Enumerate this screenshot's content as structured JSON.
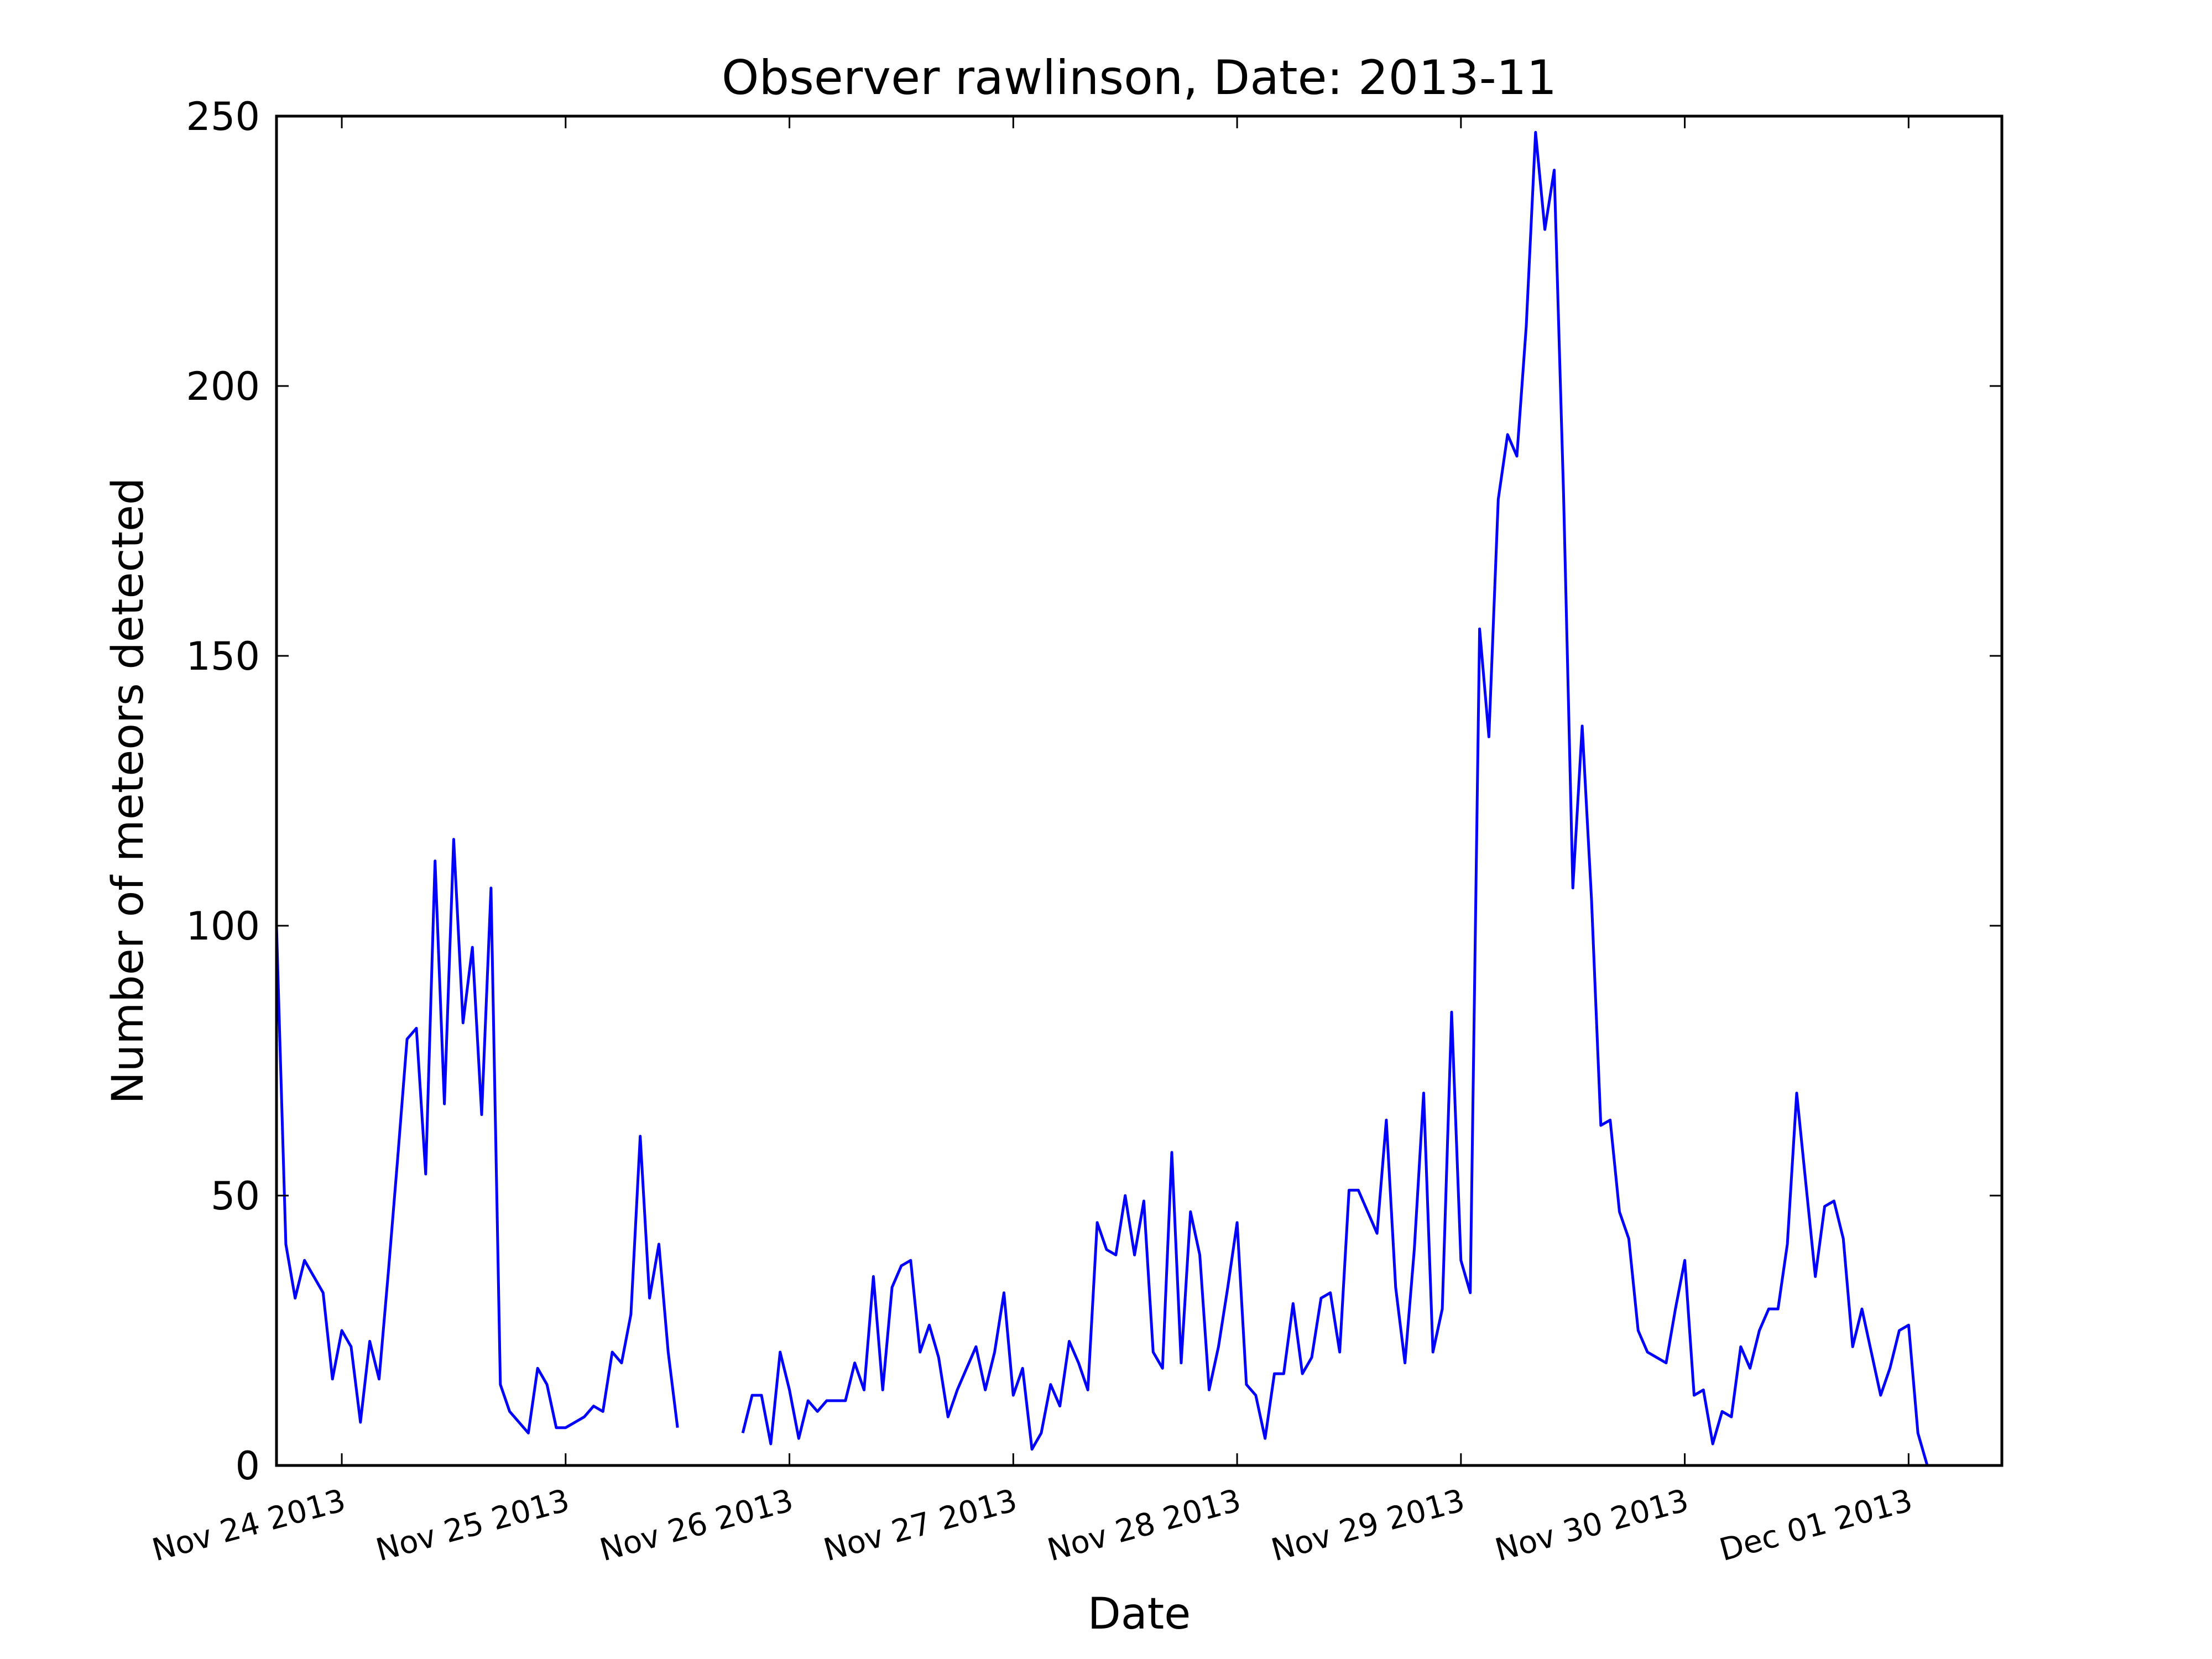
{
  "chart_data": {
    "type": "line",
    "title": "Observer rawlinson, Date: 2013-11",
    "xlabel": "Date",
    "ylabel": "Number of meteors detected",
    "xlim": [
      "2013-11-23 17:00",
      "2013-12-01 10:00"
    ],
    "ylim": [
      0,
      250
    ],
    "grid": false,
    "x_ticks": [
      {
        "date": "2013-11-24 00:00",
        "label": "Nov 24 2013"
      },
      {
        "date": "2013-11-25 00:00",
        "label": "Nov 25 2013"
      },
      {
        "date": "2013-11-26 00:00",
        "label": "Nov 26 2013"
      },
      {
        "date": "2013-11-27 00:00",
        "label": "Nov 27 2013"
      },
      {
        "date": "2013-11-28 00:00",
        "label": "Nov 28 2013"
      },
      {
        "date": "2013-11-29 00:00",
        "label": "Nov 29 2013"
      },
      {
        "date": "2013-11-30 00:00",
        "label": "Nov 30 2013"
      },
      {
        "date": "2013-12-01 00:00",
        "label": "Dec 01 2013"
      }
    ],
    "y_ticks": [
      0,
      50,
      100,
      150,
      200,
      250
    ],
    "series": [
      {
        "color": "#0000ff",
        "segments": [
          {
            "x": [
              "2013-11-23 17:00",
              "2013-11-23 18:00",
              "2013-11-23 19:00",
              "2013-11-23 20:00",
              "2013-11-23 21:00",
              "2013-11-23 22:00",
              "2013-11-23 23:00",
              "2013-11-24 00:00",
              "2013-11-24 01:00",
              "2013-11-24 02:00",
              "2013-11-24 03:00",
              "2013-11-24 04:00",
              "2013-11-24 05:00",
              "2013-11-24 06:00",
              "2013-11-24 07:00",
              "2013-11-24 08:00",
              "2013-11-24 09:00",
              "2013-11-24 10:00",
              "2013-11-24 11:00",
              "2013-11-24 12:00",
              "2013-11-24 13:00",
              "2013-11-24 14:00",
              "2013-11-24 15:00",
              "2013-11-24 16:00",
              "2013-11-24 17:00",
              "2013-11-24 18:00",
              "2013-11-24 19:00",
              "2013-11-24 20:00",
              "2013-11-24 21:00",
              "2013-11-24 22:00",
              "2013-11-24 23:00",
              "2013-11-25 00:00",
              "2013-11-25 01:00",
              "2013-11-25 02:00",
              "2013-11-25 03:00",
              "2013-11-25 04:00",
              "2013-11-25 05:00",
              "2013-11-25 06:00",
              "2013-11-25 07:00",
              "2013-11-25 08:00",
              "2013-11-25 09:00",
              "2013-11-25 10:00",
              "2013-11-25 11:00",
              "2013-11-25 12:00",
              "2013-11-25 13:00",
              "2013-11-25 14:00"
            ],
            "y": [
              100,
              41,
              31,
              38,
              35,
              32,
              16,
              25,
              22,
              8,
              23,
              16,
              36,
              57,
              79,
              81,
              54,
              112,
              67,
              116,
              82,
              96,
              65,
              107,
              15,
              10,
              8,
              6,
              18,
              15,
              7,
              7,
              8,
              9,
              11,
              10,
              21,
              19,
              28,
              61,
              31,
              41,
              21,
              7,
              null,
              null
            ]
          },
          {
            "x": [
              "2013-11-25 19:00",
              "2013-11-25 20:00",
              "2013-11-25 21:00",
              "2013-11-25 22:00",
              "2013-11-25 23:00",
              "2013-11-26 00:00",
              "2013-11-26 01:00",
              "2013-11-26 02:00",
              "2013-11-26 03:00",
              "2013-11-26 04:00",
              "2013-11-26 05:00",
              "2013-11-26 06:00",
              "2013-11-26 07:00",
              "2013-11-26 08:00",
              "2013-11-26 09:00",
              "2013-11-26 10:00",
              "2013-11-26 11:00",
              "2013-11-26 12:00",
              "2013-11-26 13:00",
              "2013-11-26 14:00",
              "2013-11-26 15:00",
              "2013-11-26 16:00",
              "2013-11-26 17:00",
              "2013-11-26 18:00",
              "2013-11-26 19:00",
              "2013-11-26 20:00",
              "2013-11-26 21:00",
              "2013-11-26 22:00",
              "2013-11-26 23:00",
              "2013-11-27 00:00",
              "2013-11-27 01:00",
              "2013-11-27 02:00",
              "2013-11-27 03:00",
              "2013-11-27 04:00",
              "2013-11-27 05:00",
              "2013-11-27 06:00",
              "2013-11-27 07:00",
              "2013-11-27 08:00",
              "2013-11-27 09:00",
              "2013-11-27 10:00",
              "2013-11-27 11:00",
              "2013-11-27 12:00",
              "2013-11-27 13:00",
              "2013-11-27 14:00",
              "2013-11-27 15:00",
              "2013-11-27 16:00",
              "2013-11-27 17:00",
              "2013-11-27 18:00",
              "2013-11-27 19:00",
              "2013-11-27 20:00",
              "2013-11-27 21:00",
              "2013-11-27 22:00",
              "2013-11-27 23:00",
              "2013-11-28 00:00",
              "2013-11-28 01:00",
              "2013-11-28 02:00",
              "2013-11-28 03:00",
              "2013-11-28 04:00",
              "2013-11-28 05:00",
              "2013-11-28 06:00",
              "2013-11-28 07:00",
              "2013-11-28 08:00",
              "2013-11-28 09:00",
              "2013-11-28 10:00",
              "2013-11-28 11:00",
              "2013-11-28 12:00",
              "2013-11-28 13:00",
              "2013-11-28 14:00",
              "2013-11-28 15:00",
              "2013-11-28 16:00",
              "2013-11-28 17:00",
              "2013-11-28 18:00",
              "2013-11-28 19:00",
              "2013-11-28 20:00",
              "2013-11-28 21:00",
              "2013-11-28 22:00",
              "2013-11-28 23:00",
              "2013-11-29 00:00",
              "2013-11-29 01:00",
              "2013-11-29 02:00",
              "2013-11-29 03:00",
              "2013-11-29 04:00",
              "2013-11-29 05:00",
              "2013-11-29 06:00",
              "2013-11-29 07:00",
              "2013-11-29 08:00",
              "2013-11-29 09:00",
              "2013-11-29 10:00",
              "2013-11-29 11:00",
              "2013-11-29 12:00",
              "2013-11-29 13:00",
              "2013-11-29 14:00",
              "2013-11-29 15:00",
              "2013-11-29 16:00",
              "2013-11-29 17:00",
              "2013-11-29 18:00",
              "2013-11-29 19:00",
              "2013-11-29 20:00",
              "2013-11-29 21:00",
              "2013-11-29 22:00",
              "2013-11-29 23:00",
              "2013-11-30 00:00",
              "2013-11-30 01:00",
              "2013-11-30 02:00",
              "2013-11-30 03:00",
              "2013-11-30 04:00",
              "2013-11-30 05:00",
              "2013-11-30 06:00",
              "2013-11-30 07:00",
              "2013-11-30 08:00",
              "2013-11-30 09:00",
              "2013-11-30 10:00",
              "2013-11-30 11:00",
              "2013-11-30 12:00",
              "2013-11-30 13:00",
              "2013-11-30 14:00",
              "2013-11-30 15:00",
              "2013-11-30 16:00",
              "2013-11-30 17:00",
              "2013-11-30 18:00",
              "2013-11-30 19:00",
              "2013-11-30 20:00",
              "2013-11-30 21:00",
              "2013-11-30 22:00",
              "2013-11-30 23:00",
              "2013-12-01 00:00",
              "2013-12-01 01:00",
              "2013-12-01 02:00"
            ],
            "y": [
              6,
              13,
              13,
              4,
              21,
              14,
              5,
              12,
              10,
              12,
              12,
              12,
              19,
              14,
              35,
              14,
              33,
              37,
              38,
              21,
              26,
              20,
              9,
              14,
              18,
              22,
              14,
              21,
              32,
              13,
              18,
              3,
              6,
              15,
              11,
              23,
              19,
              14,
              45,
              40,
              39,
              50,
              39,
              49,
              21,
              18,
              58,
              19,
              47,
              39,
              14,
              22,
              33,
              45,
              15,
              13,
              5,
              17,
              17,
              30,
              17,
              20,
              31,
              32,
              21,
              51,
              51,
              47,
              43,
              64,
              33,
              19,
              40,
              69,
              21,
              29,
              84,
              38,
              32,
              155,
              135,
              179,
              191,
              187,
              211,
              247,
              229,
              240,
              180,
              107,
              137,
              105,
              63,
              64,
              47,
              42,
              25,
              21,
              20,
              19,
              29,
              38,
              13,
              14,
              4,
              10,
              9,
              22,
              18,
              25,
              29,
              29,
              41,
              69,
              52,
              35,
              48,
              49,
              42,
              22,
              29,
              21,
              13,
              18,
              25,
              26,
              6,
              0
            ]
          }
        ]
      }
    ]
  }
}
